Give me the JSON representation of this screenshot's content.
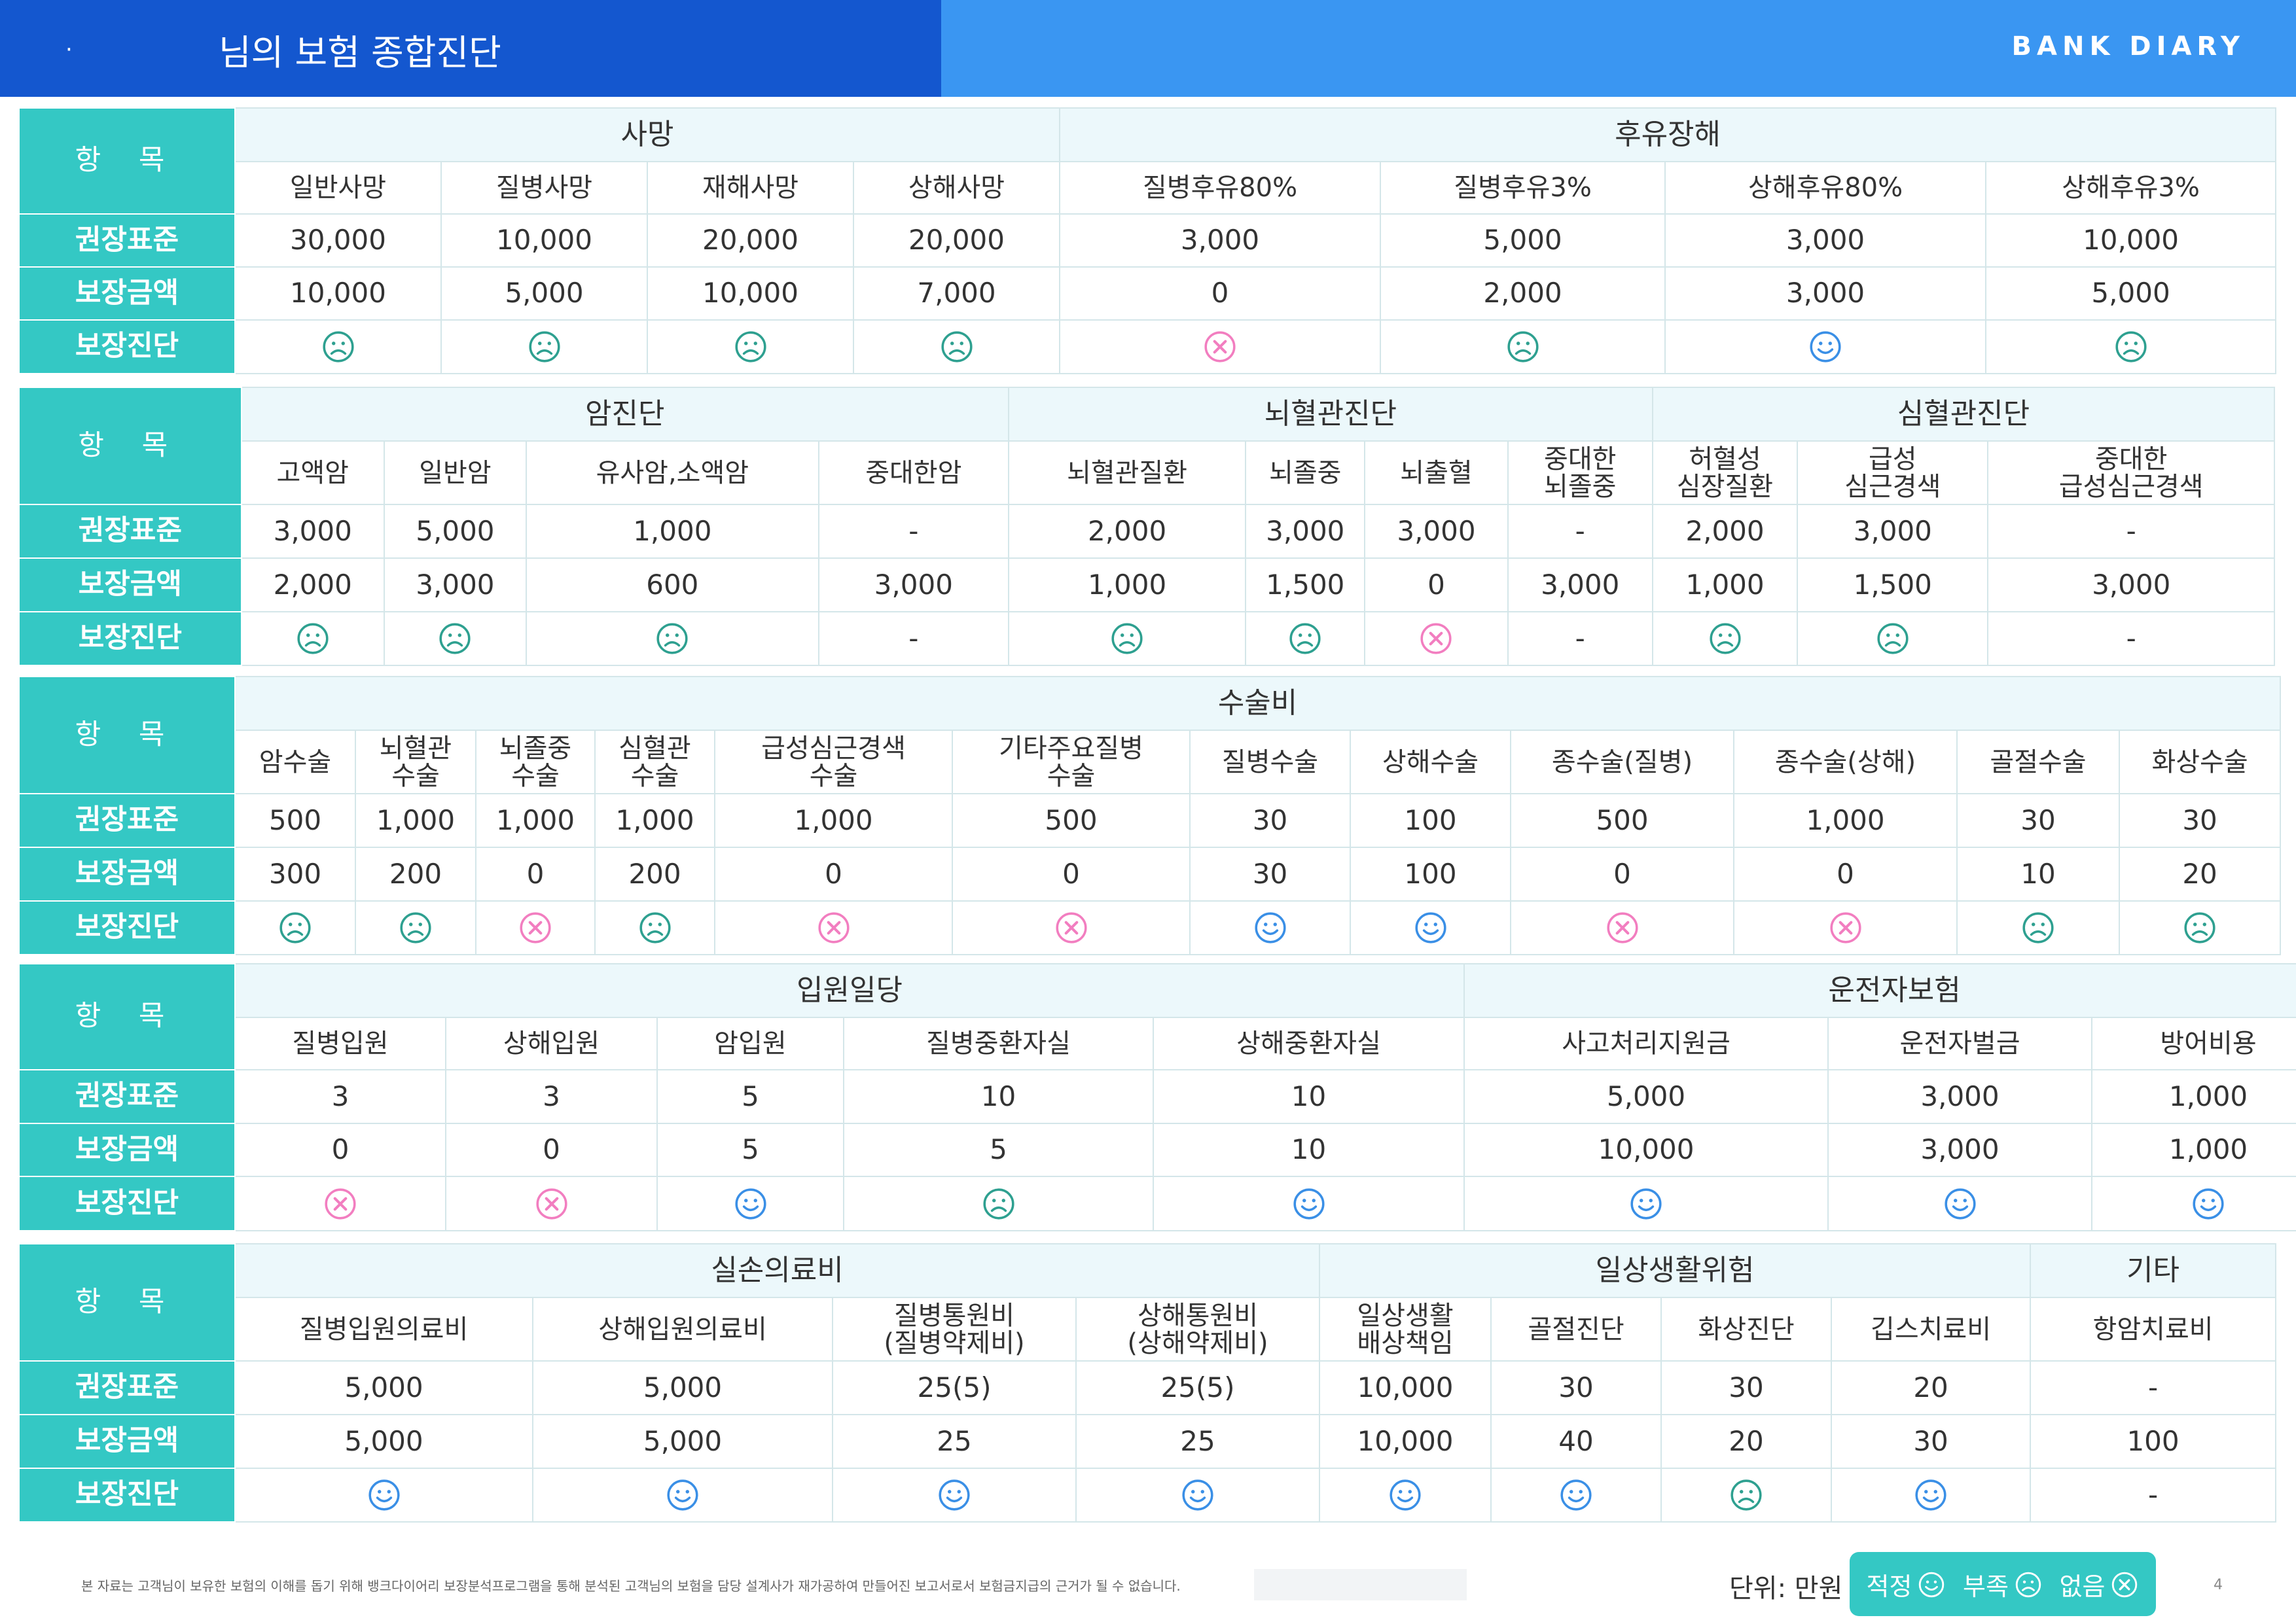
{
  "header": {
    "dot": "·",
    "title": "님의 보험 종합진단",
    "logo": "BANK DIARY"
  },
  "row_labels": {
    "item": "항 목",
    "recommended": "권장표준",
    "covered": "보장금액",
    "diagnosis": "보장진단"
  },
  "status_colors": {
    "good": "#3a8fe6",
    "short": "#2ea090",
    "none": "#f27ec0"
  },
  "sections": [
    {
      "groups": [
        {
          "label": "사망",
          "span": 4
        },
        {
          "label": "후유장해",
          "span": 4
        }
      ],
      "items": [
        {
          "name": "일반사망",
          "rec": "30,000",
          "cov": "10,000",
          "status": "short"
        },
        {
          "name": "질병사망",
          "rec": "10,000",
          "cov": "5,000",
          "status": "short"
        },
        {
          "name": "재해사망",
          "rec": "20,000",
          "cov": "10,000",
          "status": "short"
        },
        {
          "name": "상해사망",
          "rec": "20,000",
          "cov": "7,000",
          "status": "short"
        },
        {
          "name": "질병후유80%",
          "rec": "3,000",
          "cov": "0",
          "status": "none"
        },
        {
          "name": "질병후유3%",
          "rec": "5,000",
          "cov": "2,000",
          "status": "short"
        },
        {
          "name": "상해후유80%",
          "rec": "3,000",
          "cov": "3,000",
          "status": "good"
        },
        {
          "name": "상해후유3%",
          "rec": "10,000",
          "cov": "5,000",
          "status": "short"
        }
      ]
    },
    {
      "groups": [
        {
          "label": "암진단",
          "span": 4
        },
        {
          "label": "뇌혈관진단",
          "span": 4
        },
        {
          "label": "심혈관진단",
          "span": 3
        }
      ],
      "items": [
        {
          "name": "고액암",
          "rec": "3,000",
          "cov": "2,000",
          "status": "short"
        },
        {
          "name": "일반암",
          "rec": "5,000",
          "cov": "3,000",
          "status": "short"
        },
        {
          "name": "유사암,소액암",
          "rec": "1,000",
          "cov": "600",
          "status": "short"
        },
        {
          "name": "중대한암",
          "rec": "-",
          "cov": "3,000",
          "status": "dash"
        },
        {
          "name": "뇌혈관질환",
          "rec": "2,000",
          "cov": "1,000",
          "status": "short"
        },
        {
          "name": "뇌졸중",
          "rec": "3,000",
          "cov": "1,500",
          "status": "short"
        },
        {
          "name": "뇌출혈",
          "rec": "3,000",
          "cov": "0",
          "status": "none"
        },
        {
          "name": "중대한\n뇌졸중",
          "rec": "-",
          "cov": "3,000",
          "status": "dash"
        },
        {
          "name": "허혈성\n심장질환",
          "rec": "2,000",
          "cov": "1,000",
          "status": "short"
        },
        {
          "name": "급성\n심근경색",
          "rec": "3,000",
          "cov": "1,500",
          "status": "short"
        },
        {
          "name": "중대한\n급성심근경색",
          "rec": "-",
          "cov": "3,000",
          "status": "dash"
        }
      ]
    },
    {
      "groups": [
        {
          "label": "수술비",
          "span": 12
        }
      ],
      "items": [
        {
          "name": "암수술",
          "rec": "500",
          "cov": "300",
          "status": "short"
        },
        {
          "name": "뇌혈관\n수술",
          "rec": "1,000",
          "cov": "200",
          "status": "short"
        },
        {
          "name": "뇌졸중\n수술",
          "rec": "1,000",
          "cov": "0",
          "status": "none"
        },
        {
          "name": "심혈관\n수술",
          "rec": "1,000",
          "cov": "200",
          "status": "short"
        },
        {
          "name": "급성심근경색\n수술",
          "rec": "1,000",
          "cov": "0",
          "status": "none"
        },
        {
          "name": "기타주요질병\n수술",
          "rec": "500",
          "cov": "0",
          "status": "none"
        },
        {
          "name": "질병수술",
          "rec": "30",
          "cov": "30",
          "status": "good"
        },
        {
          "name": "상해수술",
          "rec": "100",
          "cov": "100",
          "status": "good"
        },
        {
          "name": "종수술(질병)",
          "rec": "500",
          "cov": "0",
          "status": "none"
        },
        {
          "name": "종수술(상해)",
          "rec": "1,000",
          "cov": "0",
          "status": "none"
        },
        {
          "name": "골절수술",
          "rec": "30",
          "cov": "10",
          "status": "short"
        },
        {
          "name": "화상수술",
          "rec": "30",
          "cov": "20",
          "status": "short"
        }
      ]
    },
    {
      "groups": [
        {
          "label": "입원일당",
          "span": 5
        },
        {
          "label": "운전자보험",
          "span": 3
        }
      ],
      "items": [
        {
          "name": "질병입원",
          "rec": "3",
          "cov": "0",
          "status": "none"
        },
        {
          "name": "상해입원",
          "rec": "3",
          "cov": "0",
          "status": "none"
        },
        {
          "name": "암입원",
          "rec": "5",
          "cov": "5",
          "status": "good"
        },
        {
          "name": "질병중환자실",
          "rec": "10",
          "cov": "5",
          "status": "short"
        },
        {
          "name": "상해중환자실",
          "rec": "10",
          "cov": "10",
          "status": "good"
        },
        {
          "name": "사고처리지원금",
          "rec": "5,000",
          "cov": "10,000",
          "status": "good"
        },
        {
          "name": "운전자벌금",
          "rec": "3,000",
          "cov": "3,000",
          "status": "good"
        },
        {
          "name": "방어비용",
          "rec": "1,000",
          "cov": "1,000",
          "status": "good"
        }
      ]
    },
    {
      "groups": [
        {
          "label": "실손의료비",
          "span": 4
        },
        {
          "label": "일상생활위험",
          "span": 4
        },
        {
          "label": "기타",
          "span": 1
        }
      ],
      "items": [
        {
          "name": "질병입원의료비",
          "rec": "5,000",
          "cov": "5,000",
          "status": "good"
        },
        {
          "name": "상해입원의료비",
          "rec": "5,000",
          "cov": "5,000",
          "status": "good"
        },
        {
          "name": "질병통원비\n(질병약제비)",
          "rec": "25(5)",
          "cov": "25",
          "status": "good"
        },
        {
          "name": "상해통원비\n(상해약제비)",
          "rec": "25(5)",
          "cov": "25",
          "status": "good"
        },
        {
          "name": "일상생활\n배상책임",
          "rec": "10,000",
          "cov": "10,000",
          "status": "good"
        },
        {
          "name": "골절진단",
          "rec": "30",
          "cov": "40",
          "status": "good"
        },
        {
          "name": "화상진단",
          "rec": "30",
          "cov": "20",
          "status": "short"
        },
        {
          "name": "깁스치료비",
          "rec": "20",
          "cov": "30",
          "status": "good"
        },
        {
          "name": "항암치료비",
          "rec": "-",
          "cov": "100",
          "status": "dash"
        }
      ]
    }
  ],
  "footer": {
    "note": "본 자료는 고객님이 보유한 보험의 이해를 돕기 위해 뱅크다이어리 보장분석프로그램을 통해 분석된 고객님의 보험을 담당 설계사가 재가공하여 만들어진 보고서로서 보험금지급의 근거가 될 수 없습니다.",
    "unit": "단위: 만원",
    "legend": [
      {
        "label": "적정",
        "status": "good"
      },
      {
        "label": "부족",
        "status": "short"
      },
      {
        "label": "없음",
        "status": "none"
      }
    ],
    "page": "4"
  },
  "dash_text": "-"
}
